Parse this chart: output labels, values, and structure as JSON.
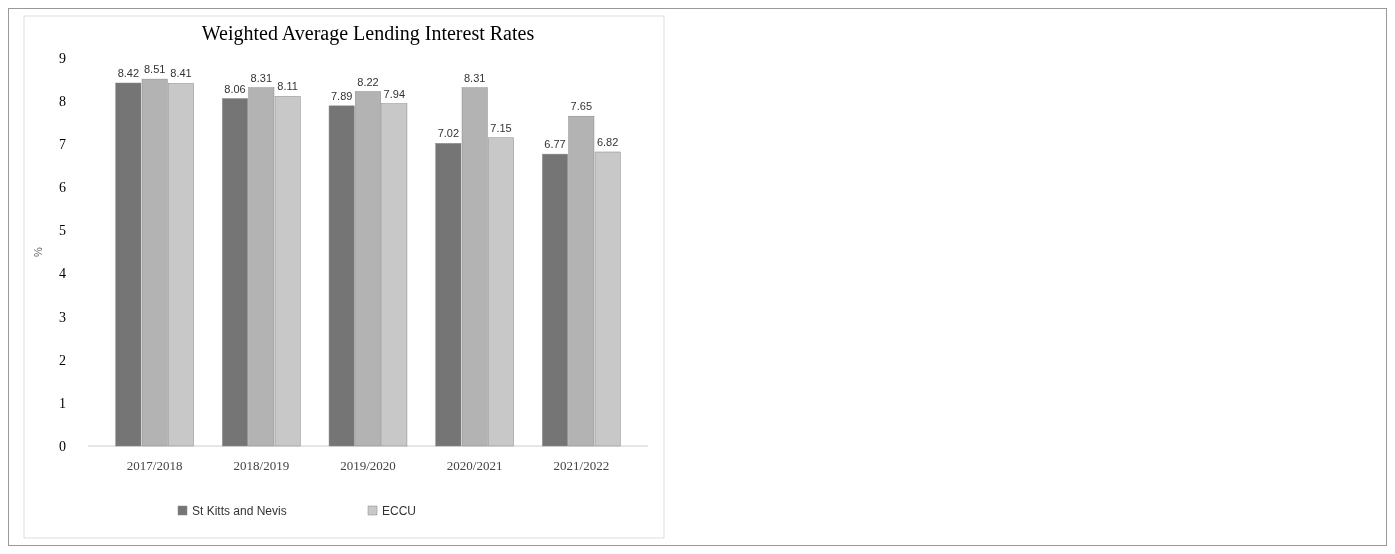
{
  "chart_data": {
    "type": "bar",
    "title": "Weighted Average Lending Interest Rates",
    "ylabel": "%",
    "categories": [
      "2017/2018",
      "2018/2019",
      "2019/2020",
      "2020/2021",
      "2021/2022"
    ],
    "series": [
      {
        "name": "St Kitts and Nevis",
        "color": "#757575",
        "values": [
          8.42,
          8.06,
          7.89,
          7.02,
          6.77
        ]
      },
      {
        "color": "#b3b3b3",
        "values": [
          8.51,
          8.31,
          8.22,
          8.31,
          7.65
        ]
      },
      {
        "name": "ECCU",
        "color": "#c8c8c8",
        "values": [
          8.41,
          8.11,
          7.94,
          7.15,
          6.82
        ]
      }
    ],
    "ylim": [
      0,
      9
    ],
    "yticks": [
      0,
      1,
      2,
      3,
      4,
      5,
      6,
      7,
      8,
      9
    ],
    "data_labels": true,
    "legend": "bottom",
    "grid": false
  }
}
